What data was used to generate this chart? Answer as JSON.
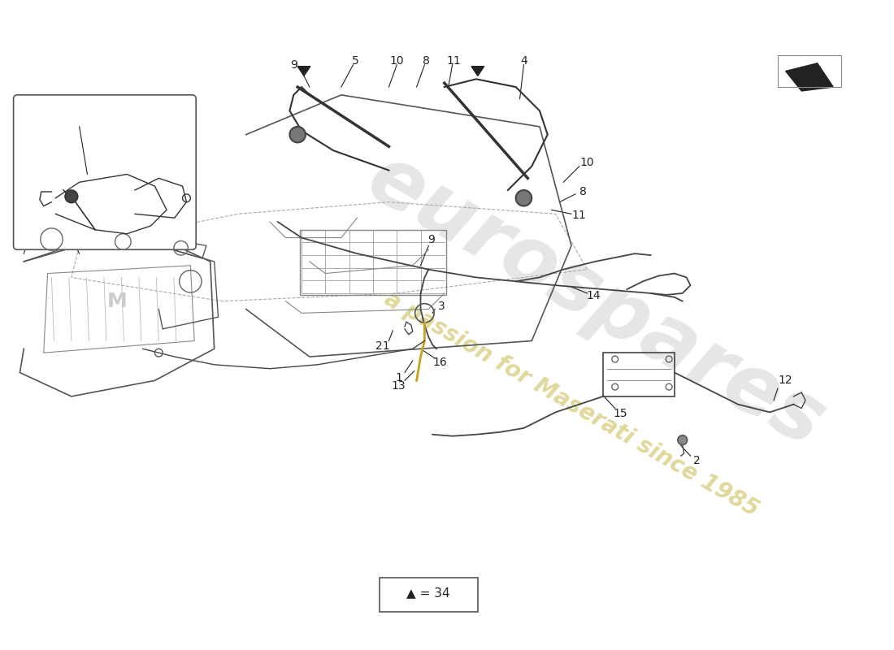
{
  "background_color": "#ffffff",
  "watermark_text": "eurospares",
  "watermark_subtext": "a passion for Maserati since 1985",
  "watermark_color_main": "#d0d0d0",
  "watermark_color_sub": "#c8b84a",
  "legend_text": "▲ = 34",
  "fig_width": 11.0,
  "fig_height": 8.0
}
